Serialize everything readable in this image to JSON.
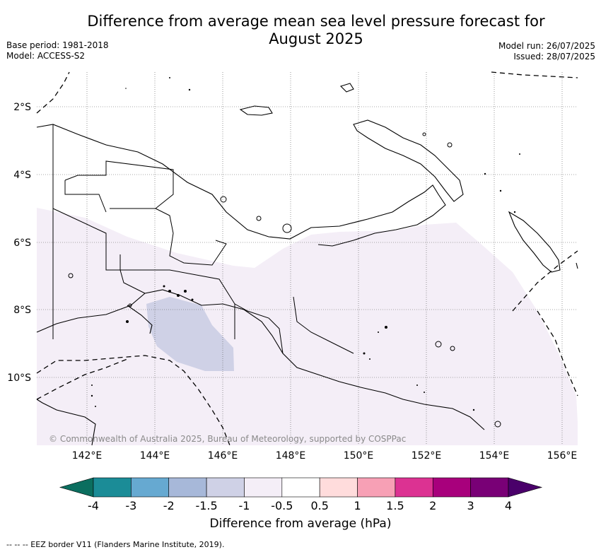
{
  "title": "Difference from average mean sea level pressure forecast for August 2025",
  "meta_left": {
    "base_period": "Base period: 1981-2018",
    "model": "Model: ACCESS-S2"
  },
  "meta_right": {
    "model_run": "Model run: 26/07/2025",
    "issued": "Issued: 28/07/2025"
  },
  "map": {
    "lat_ticks": [
      "2°S",
      "4°S",
      "6°S",
      "8°S",
      "10°S"
    ],
    "lon_ticks": [
      "142°E",
      "144°E",
      "146°E",
      "148°E",
      "150°E",
      "152°E",
      "154°E",
      "156°E"
    ],
    "extent": {
      "lon_min": 140.5,
      "lon_max": 156.5,
      "lat_min": -12,
      "lat_max": -1
    },
    "gridlines": true,
    "field": [
      {
        "category": "-1.5 to -1",
        "color": "#cfd1e6",
        "region": "Gulf of Papua"
      },
      {
        "category": "-1 to -0.5",
        "color": "#f4eef7",
        "region": "southern half of map"
      },
      {
        "category": "-0.5 to 0.5",
        "color": "#ffffff",
        "region": "northern half of map"
      }
    ]
  },
  "credit": "© Commonwealth of Australia 2025, Bureau of Meteorology, supported by COSPPac",
  "colorbar": {
    "title": "Difference from average (hPa)",
    "tick_labels": [
      "-4",
      "-3",
      "-2",
      "-1.5",
      "-1",
      "-0.5",
      "0.5",
      "1",
      "1.5",
      "2",
      "3",
      "4"
    ],
    "colors": [
      "#0b6e5f",
      "#1b8c97",
      "#66a9d1",
      "#a7b8d9",
      "#cfd1e6",
      "#f4eef7",
      "#ffffff",
      "#ffdcdc",
      "#f7a0b5",
      "#dc3292",
      "#a8007c",
      "#790076",
      "#4a006a"
    ]
  },
  "eez_note": "--  --  -- EEZ border V11 (Flanders Marine Institute, 2019)."
}
